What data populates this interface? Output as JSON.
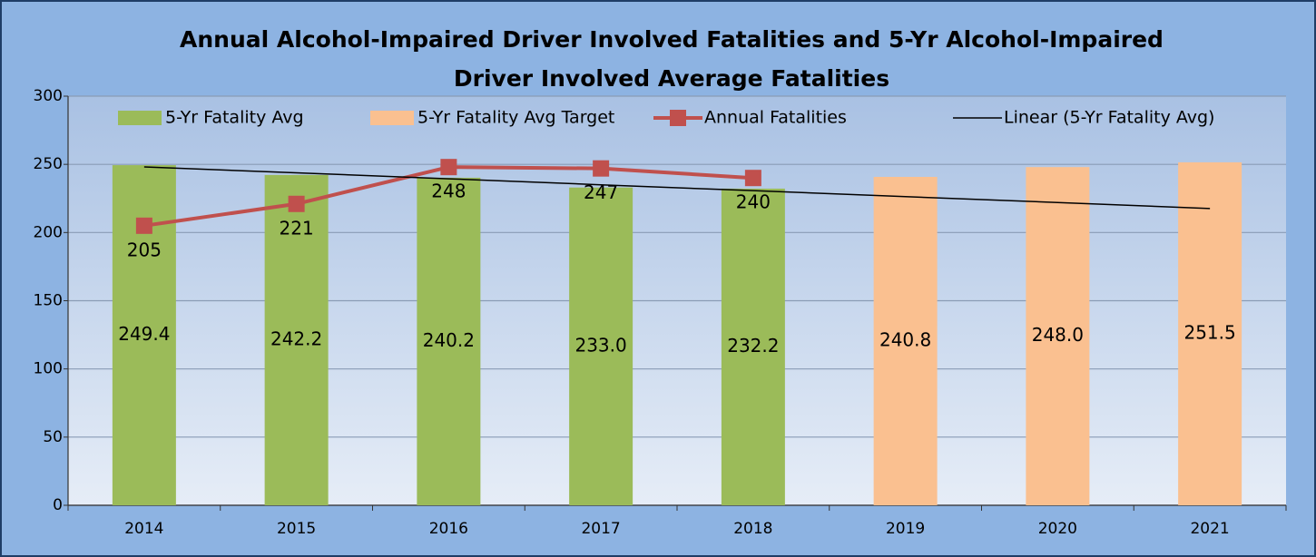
{
  "chart_data": {
    "type": "bar",
    "title": "Annual Alcohol-Impaired Driver Involved Fatalities and 5-Yr Alcohol-Impaired Driver Involved Average Fatalities",
    "title_lines": [
      "Annual Alcohol-Impaired Driver Involved Fatalities and 5-Yr Alcohol-Impaired",
      "Driver Involved Average Fatalities"
    ],
    "categories": [
      "2014",
      "2015",
      "2016",
      "2017",
      "2018",
      "2019",
      "2020",
      "2021"
    ],
    "series": [
      {
        "name": "5-Yr Fatality Avg",
        "type": "bar",
        "color": "#9bbb59",
        "values": [
          249.4,
          242.2,
          240.2,
          233.0,
          232.2,
          null,
          null,
          null
        ],
        "value_labels": [
          "249.4",
          "242.2",
          "240.2",
          "233.0",
          "232.2",
          null,
          null,
          null
        ]
      },
      {
        "name": "5-Yr Fatality Avg Target",
        "type": "bar",
        "color": "#fac090",
        "values": [
          null,
          null,
          null,
          null,
          null,
          240.8,
          248.0,
          251.5
        ],
        "value_labels": [
          null,
          null,
          null,
          null,
          null,
          "240.8",
          "248.0",
          "251.5"
        ]
      },
      {
        "name": "Annual Fatalities",
        "type": "line",
        "color": "#c0504d",
        "markers": true,
        "values": [
          205,
          221,
          248,
          247,
          240,
          null,
          null,
          null
        ]
      },
      {
        "name": "Linear (5-Yr Fatality Avg)",
        "type": "line",
        "color": "#000000",
        "markers": false,
        "values": [
          248.1,
          243.8,
          239.4,
          235.0,
          230.7,
          226.3,
          222.0,
          217.6
        ]
      }
    ],
    "ylim": [
      0,
      300
    ],
    "yticks": [
      0,
      50,
      100,
      150,
      200,
      250,
      300
    ],
    "grid": true,
    "legend": "top"
  }
}
